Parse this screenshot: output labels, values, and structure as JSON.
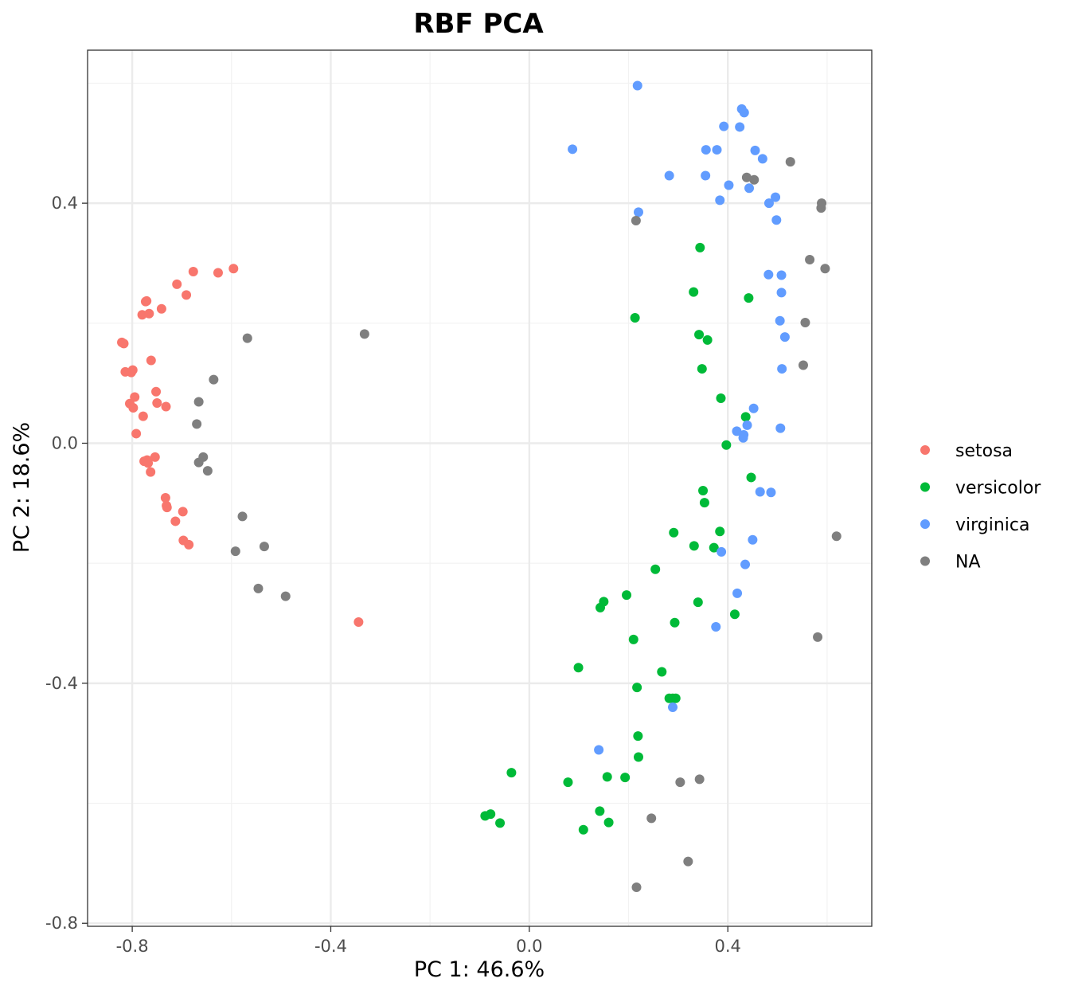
{
  "chart_data": {
    "type": "scatter",
    "title": "RBF PCA",
    "xlabel": "PC 1: 46.6%",
    "ylabel": "PC 2: 18.6%",
    "xlim": [
      -0.89,
      0.69
    ],
    "ylim": [
      -0.805,
      0.655
    ],
    "x_ticks": [
      -0.8,
      -0.4,
      0.0,
      0.4
    ],
    "x_tick_labels": [
      "-0.8",
      "-0.4",
      "0.0",
      "0.4"
    ],
    "y_ticks": [
      -0.8,
      -0.4,
      0.0,
      0.4
    ],
    "y_tick_labels": [
      "-0.8",
      "-0.4",
      "0.0",
      "0.4"
    ],
    "grid": true,
    "legend": {
      "title": "",
      "placement": "right"
    },
    "series": [
      {
        "name": "setosa",
        "color": "#F8766D",
        "points": [
          [
            -0.821,
            0.168
          ],
          [
            -0.817,
            0.166
          ],
          [
            -0.814,
            0.119
          ],
          [
            -0.805,
            0.066
          ],
          [
            -0.802,
            0.118
          ],
          [
            -0.799,
            0.122
          ],
          [
            -0.798,
            0.059
          ],
          [
            -0.795,
            0.077
          ],
          [
            -0.792,
            0.016
          ],
          [
            -0.78,
            0.214
          ],
          [
            -0.778,
            0.045
          ],
          [
            -0.776,
            -0.03
          ],
          [
            -0.773,
            0.236
          ],
          [
            -0.771,
            0.237
          ],
          [
            -0.77,
            -0.028
          ],
          [
            -0.768,
            -0.033
          ],
          [
            -0.766,
            0.216
          ],
          [
            -0.763,
            -0.048
          ],
          [
            -0.762,
            0.138
          ],
          [
            -0.754,
            -0.023
          ],
          [
            -0.752,
            0.086
          ],
          [
            -0.75,
            0.067
          ],
          [
            -0.741,
            0.224
          ],
          [
            -0.733,
            -0.091
          ],
          [
            -0.732,
            0.061
          ],
          [
            -0.731,
            -0.104
          ],
          [
            -0.73,
            -0.107
          ],
          [
            -0.713,
            -0.13
          ],
          [
            -0.71,
            0.265
          ],
          [
            -0.698,
            -0.114
          ],
          [
            -0.697,
            -0.162
          ],
          [
            -0.691,
            0.247
          ],
          [
            -0.686,
            -0.169
          ],
          [
            -0.677,
            0.286
          ],
          [
            -0.627,
            0.284
          ],
          [
            -0.596,
            0.291
          ],
          [
            -0.344,
            -0.298
          ]
        ]
      },
      {
        "name": "versicolor",
        "color": "#00BA38",
        "points": [
          [
            -0.089,
            -0.621
          ],
          [
            -0.078,
            -0.618
          ],
          [
            -0.059,
            -0.633
          ],
          [
            -0.036,
            -0.549
          ],
          [
            0.078,
            -0.565
          ],
          [
            0.099,
            -0.374
          ],
          [
            0.109,
            -0.644
          ],
          [
            0.142,
            -0.613
          ],
          [
            0.143,
            -0.274
          ],
          [
            0.15,
            -0.264
          ],
          [
            0.157,
            -0.556
          ],
          [
            0.16,
            -0.632
          ],
          [
            0.193,
            -0.557
          ],
          [
            0.196,
            -0.253
          ],
          [
            0.21,
            -0.327
          ],
          [
            0.213,
            0.209
          ],
          [
            0.217,
            -0.407
          ],
          [
            0.219,
            -0.488
          ],
          [
            0.22,
            -0.523
          ],
          [
            0.254,
            -0.21
          ],
          [
            0.267,
            -0.381
          ],
          [
            0.282,
            -0.425
          ],
          [
            0.289,
            -0.425
          ],
          [
            0.291,
            -0.149
          ],
          [
            0.293,
            -0.299
          ],
          [
            0.295,
            -0.425
          ],
          [
            0.331,
            0.252
          ],
          [
            0.332,
            -0.171
          ],
          [
            0.34,
            -0.265
          ],
          [
            0.342,
            0.181
          ],
          [
            0.344,
            0.326
          ],
          [
            0.348,
            0.124
          ],
          [
            0.35,
            -0.079
          ],
          [
            0.353,
            -0.099
          ],
          [
            0.359,
            0.172
          ],
          [
            0.372,
            -0.174
          ],
          [
            0.384,
            -0.147
          ],
          [
            0.386,
            0.075
          ],
          [
            0.397,
            -0.003
          ],
          [
            0.414,
            -0.285
          ],
          [
            0.436,
            0.044
          ],
          [
            0.442,
            0.242
          ],
          [
            0.447,
            -0.057
          ]
        ]
      },
      {
        "name": "virginica",
        "color": "#619CFF",
        "points": [
          [
            0.087,
            0.49
          ],
          [
            0.14,
            -0.511
          ],
          [
            0.218,
            0.596
          ],
          [
            0.22,
            0.385
          ],
          [
            0.282,
            0.446
          ],
          [
            0.289,
            -0.44
          ],
          [
            0.355,
            0.446
          ],
          [
            0.356,
            0.489
          ],
          [
            0.376,
            -0.306
          ],
          [
            0.378,
            0.489
          ],
          [
            0.384,
            0.405
          ],
          [
            0.387,
            -0.181
          ],
          [
            0.392,
            0.528
          ],
          [
            0.402,
            0.43
          ],
          [
            0.418,
            0.02
          ],
          [
            0.419,
            -0.25
          ],
          [
            0.424,
            0.527
          ],
          [
            0.428,
            0.557
          ],
          [
            0.431,
            0.009
          ],
          [
            0.432,
            0.014
          ],
          [
            0.433,
            0.551
          ],
          [
            0.435,
            -0.202
          ],
          [
            0.439,
            0.03
          ],
          [
            0.443,
            0.425
          ],
          [
            0.45,
            -0.161
          ],
          [
            0.452,
            0.058
          ],
          [
            0.455,
            0.488
          ],
          [
            0.465,
            -0.081
          ],
          [
            0.47,
            0.474
          ],
          [
            0.482,
            0.281
          ],
          [
            0.483,
            0.4
          ],
          [
            0.487,
            -0.082
          ],
          [
            0.496,
            0.41
          ],
          [
            0.498,
            0.372
          ],
          [
            0.505,
            0.204
          ],
          [
            0.506,
            0.025
          ],
          [
            0.508,
            0.251
          ],
          [
            0.508,
            0.28
          ],
          [
            0.509,
            0.124
          ],
          [
            0.515,
            0.177
          ]
        ]
      },
      {
        "name": "NA",
        "color": "#7F7F7F",
        "points": [
          [
            -0.67,
            0.032
          ],
          [
            -0.666,
            0.069
          ],
          [
            -0.666,
            -0.032
          ],
          [
            -0.657,
            -0.023
          ],
          [
            -0.648,
            -0.046
          ],
          [
            -0.636,
            0.106
          ],
          [
            -0.592,
            -0.18
          ],
          [
            -0.578,
            -0.122
          ],
          [
            -0.568,
            0.175
          ],
          [
            -0.546,
            -0.242
          ],
          [
            -0.534,
            -0.172
          ],
          [
            -0.491,
            -0.255
          ],
          [
            -0.332,
            0.182
          ],
          [
            0.215,
            0.371
          ],
          [
            0.216,
            -0.74
          ],
          [
            0.246,
            -0.625
          ],
          [
            0.304,
            -0.565
          ],
          [
            0.32,
            -0.697
          ],
          [
            0.343,
            -0.56
          ],
          [
            0.438,
            0.443
          ],
          [
            0.453,
            0.439
          ],
          [
            0.526,
            0.469
          ],
          [
            0.552,
            0.13
          ],
          [
            0.556,
            0.201
          ],
          [
            0.565,
            0.306
          ],
          [
            0.581,
            -0.323
          ],
          [
            0.588,
            0.392
          ],
          [
            0.589,
            0.4
          ],
          [
            0.596,
            0.291
          ],
          [
            0.619,
            -0.155
          ]
        ]
      }
    ]
  }
}
